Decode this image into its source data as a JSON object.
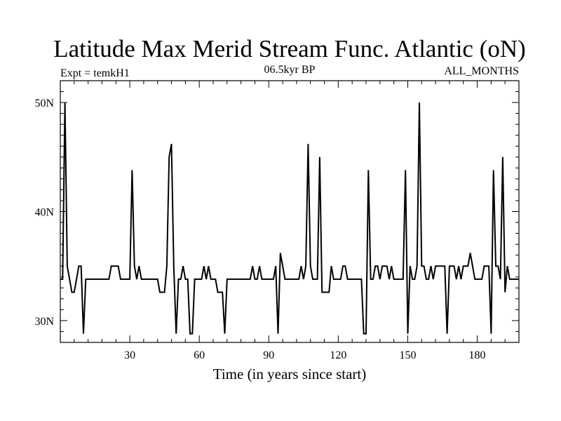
{
  "chart_data": {
    "type": "line",
    "title": "Latitude Max Merid Stream Func. Atlantic (oN)",
    "left_label": "Expt = temkH1",
    "center_label": "06.5kyr BP",
    "right_label": "ALL_MONTHS",
    "xlabel": "Time (in years since start)",
    "ylabel": "",
    "xlim": [
      0,
      198
    ],
    "ylim": [
      28,
      52
    ],
    "x_ticks": [
      30,
      60,
      90,
      120,
      150,
      180
    ],
    "x_tick_labels": [
      "30",
      "60",
      "90",
      "120",
      "150",
      "180"
    ],
    "y_ticks": [
      30,
      40,
      50
    ],
    "y_tick_labels": [
      "30N",
      "40N",
      "50N"
    ],
    "grid": false,
    "series": [
      {
        "name": "",
        "color": "#000000",
        "points": [
          [
            0,
            33.8
          ],
          [
            1,
            33.8
          ],
          [
            2,
            50.0
          ],
          [
            3,
            35.0
          ],
          [
            4,
            33.8
          ],
          [
            5,
            32.6
          ],
          [
            6,
            32.6
          ],
          [
            7,
            33.8
          ],
          [
            8,
            35.0
          ],
          [
            9,
            35.0
          ],
          [
            10,
            28.8
          ],
          [
            11,
            33.8
          ],
          [
            12,
            33.8
          ],
          [
            18,
            33.8
          ],
          [
            21,
            33.8
          ],
          [
            22,
            35.0
          ],
          [
            25,
            35.0
          ],
          [
            26,
            33.8
          ],
          [
            30,
            33.8
          ],
          [
            31,
            43.8
          ],
          [
            32,
            35.0
          ],
          [
            33,
            33.8
          ],
          [
            34,
            35.0
          ],
          [
            35,
            33.8
          ],
          [
            40,
            33.8
          ],
          [
            42,
            33.8
          ],
          [
            43,
            32.6
          ],
          [
            45,
            32.6
          ],
          [
            46,
            35.0
          ],
          [
            47,
            45.0
          ],
          [
            48,
            46.2
          ],
          [
            49,
            35.0
          ],
          [
            50,
            28.8
          ],
          [
            51,
            33.8
          ],
          [
            52,
            33.8
          ],
          [
            53,
            35.0
          ],
          [
            54,
            33.8
          ],
          [
            55,
            33.8
          ],
          [
            56,
            28.8
          ],
          [
            57,
            28.8
          ],
          [
            58,
            33.8
          ],
          [
            61,
            33.8
          ],
          [
            62,
            35.0
          ],
          [
            63,
            33.8
          ],
          [
            64,
            35.0
          ],
          [
            65,
            33.8
          ],
          [
            67,
            33.8
          ],
          [
            68,
            32.6
          ],
          [
            70,
            32.6
          ],
          [
            71,
            28.8
          ],
          [
            72,
            33.8
          ],
          [
            82,
            33.8
          ],
          [
            83,
            35.0
          ],
          [
            84,
            33.8
          ],
          [
            85,
            33.8
          ],
          [
            86,
            35.0
          ],
          [
            87,
            33.8
          ],
          [
            92,
            33.8
          ],
          [
            93,
            35.0
          ],
          [
            94,
            28.8
          ],
          [
            95,
            36.2
          ],
          [
            96,
            35.0
          ],
          [
            97,
            33.8
          ],
          [
            103,
            33.8
          ],
          [
            104,
            35.0
          ],
          [
            105,
            33.8
          ],
          [
            106,
            35.0
          ],
          [
            107,
            46.2
          ],
          [
            108,
            35.0
          ],
          [
            109,
            33.8
          ],
          [
            111,
            33.8
          ],
          [
            112,
            45.0
          ],
          [
            113,
            32.6
          ],
          [
            116,
            32.6
          ],
          [
            117,
            35.0
          ],
          [
            118,
            33.8
          ],
          [
            121,
            33.8
          ],
          [
            122,
            35.0
          ],
          [
            123,
            35.0
          ],
          [
            124,
            33.8
          ],
          [
            130,
            33.8
          ],
          [
            131,
            28.8
          ],
          [
            132,
            28.8
          ],
          [
            133,
            43.8
          ],
          [
            134,
            33.8
          ],
          [
            135,
            33.8
          ],
          [
            136,
            35.0
          ],
          [
            137,
            35.0
          ],
          [
            138,
            33.8
          ],
          [
            139,
            35.0
          ],
          [
            141,
            35.0
          ],
          [
            142,
            33.8
          ],
          [
            143,
            35.0
          ],
          [
            144,
            33.8
          ],
          [
            148,
            33.8
          ],
          [
            149,
            43.8
          ],
          [
            150,
            28.8
          ],
          [
            151,
            35.0
          ],
          [
            152,
            33.8
          ],
          [
            153,
            33.8
          ],
          [
            154,
            35.0
          ],
          [
            155,
            50.0
          ],
          [
            156,
            35.0
          ],
          [
            157,
            35.0
          ],
          [
            158,
            33.8
          ],
          [
            159,
            33.8
          ],
          [
            160,
            35.0
          ],
          [
            161,
            33.8
          ],
          [
            162,
            35.0
          ],
          [
            166,
            35.0
          ],
          [
            167,
            28.8
          ],
          [
            168,
            35.0
          ],
          [
            170,
            35.0
          ],
          [
            171,
            33.8
          ],
          [
            172,
            35.0
          ],
          [
            173,
            33.8
          ],
          [
            174,
            35.0
          ],
          [
            176,
            35.0
          ],
          [
            177,
            36.2
          ],
          [
            178,
            35.0
          ],
          [
            179,
            33.8
          ],
          [
            182,
            33.8
          ],
          [
            183,
            35.0
          ],
          [
            185,
            35.0
          ],
          [
            186,
            28.8
          ],
          [
            187,
            43.8
          ],
          [
            188,
            35.0
          ],
          [
            189,
            35.0
          ],
          [
            190,
            33.8
          ],
          [
            191,
            45.0
          ],
          [
            192,
            32.6
          ],
          [
            193,
            35.0
          ],
          [
            194,
            33.8
          ],
          [
            198,
            33.8
          ]
        ]
      }
    ]
  }
}
